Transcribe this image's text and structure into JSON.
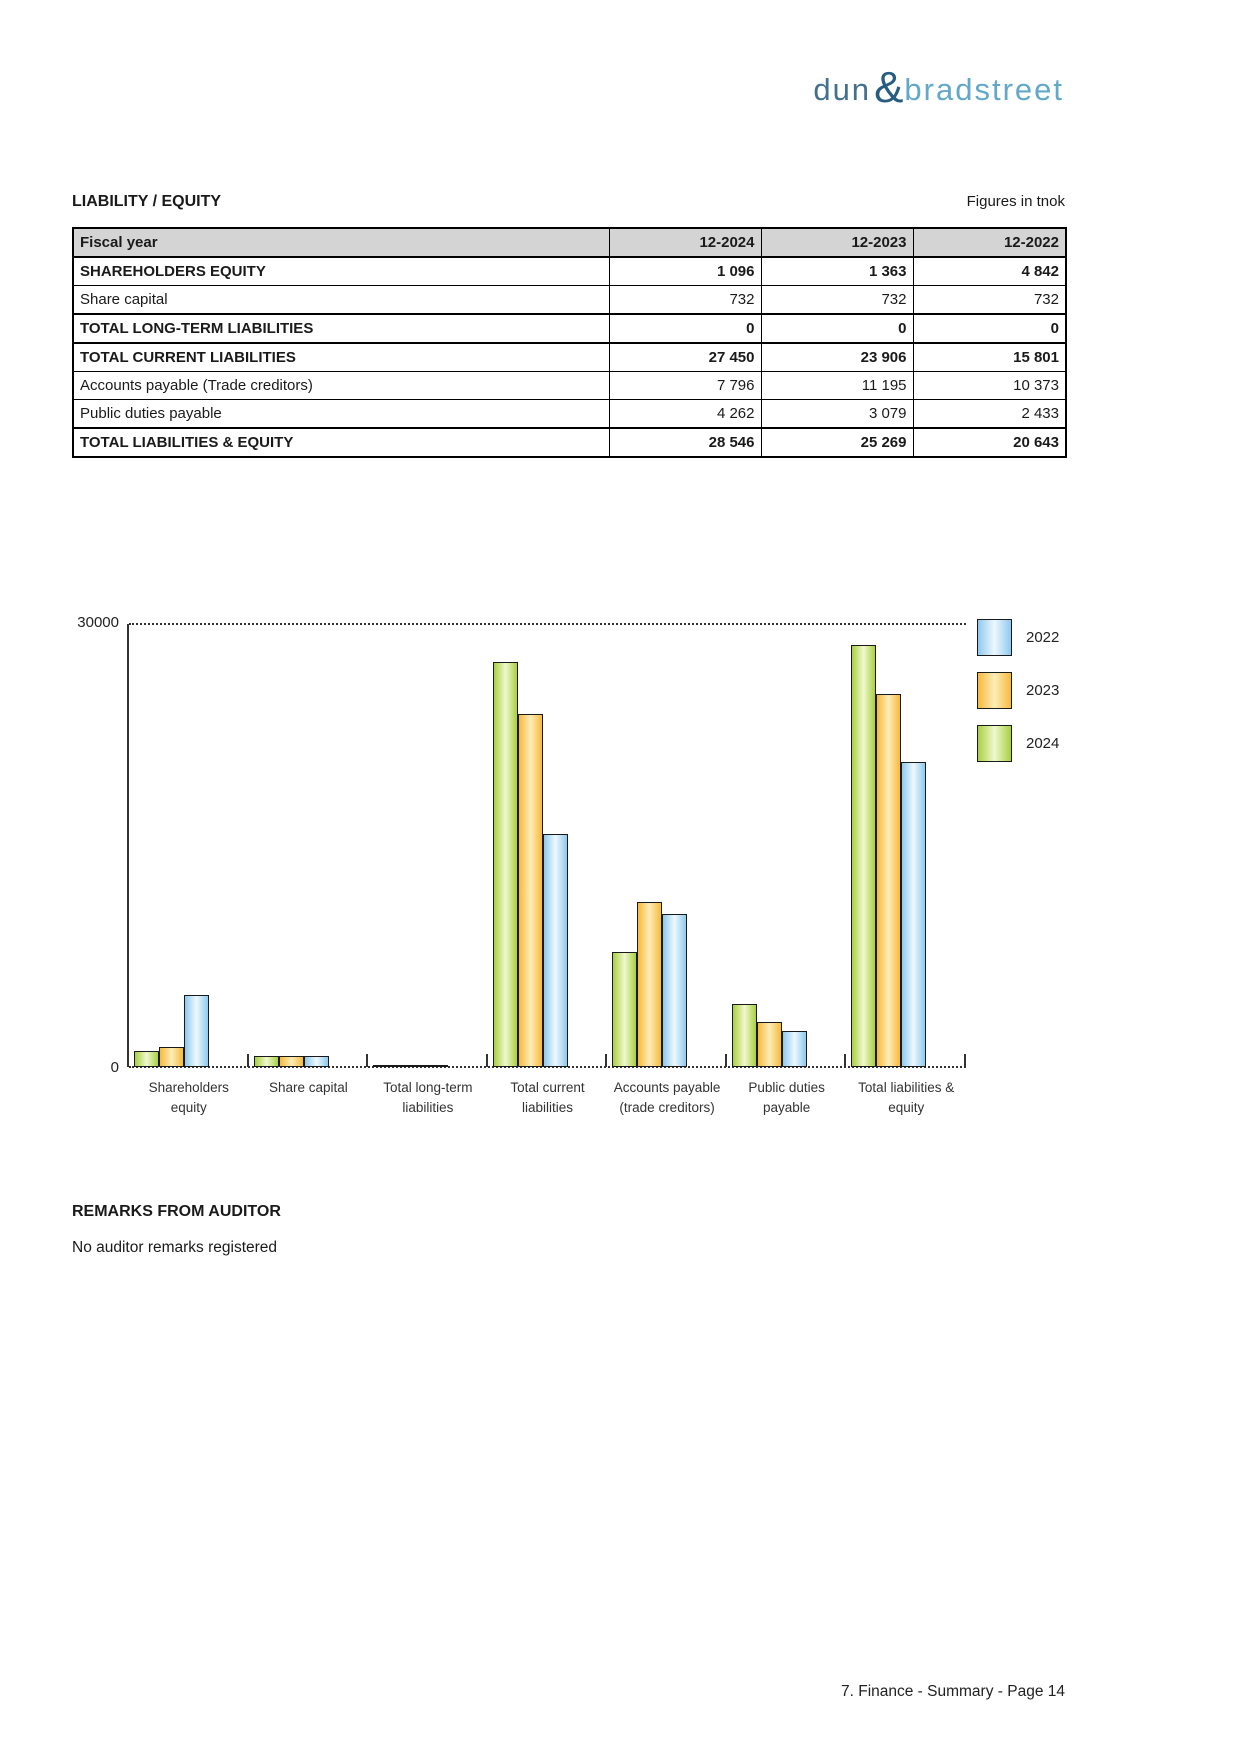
{
  "logo": {
    "dun": "dun",
    "amp": "&",
    "bradstreet": "bradstreet"
  },
  "section": {
    "title": "LIABILITY / EQUITY",
    "units_note": "Figures in tnok"
  },
  "table": {
    "header": [
      "Fiscal year",
      "12-2024",
      "12-2023",
      "12-2022"
    ],
    "rows": [
      {
        "label": "SHAREHOLDERS EQUITY",
        "values": [
          "1 096",
          "1 363",
          "4 842"
        ],
        "bold": true
      },
      {
        "label": "Share capital",
        "values": [
          "732",
          "732",
          "732"
        ],
        "bold": false
      },
      {
        "label": "TOTAL LONG-TERM LIABILITIES",
        "values": [
          "0",
          "0",
          "0"
        ],
        "bold": true
      },
      {
        "label": "TOTAL CURRENT LIABILITIES",
        "values": [
          "27 450",
          "23 906",
          "15 801"
        ],
        "bold": true
      },
      {
        "label": "Accounts payable (Trade creditors)",
        "values": [
          "7 796",
          "11 195",
          "10 373"
        ],
        "bold": false
      },
      {
        "label": "Public duties payable",
        "values": [
          "4 262",
          "3 079",
          "2 433"
        ],
        "bold": false
      },
      {
        "label": "TOTAL LIABILITIES & EQUITY",
        "values": [
          "28 546",
          "25 269",
          "20 643"
        ],
        "bold": true
      }
    ]
  },
  "chart_data": {
    "type": "bar",
    "title": "",
    "xlabel": "",
    "ylabel": "",
    "ylim": [
      0,
      30000
    ],
    "ytick_labels": [
      "30000",
      "0"
    ],
    "grid": "dotted line at 30000 and dotted baseline at 0",
    "legend_position": "right",
    "categories": [
      [
        "Shareholders",
        "equity"
      ],
      [
        "Share capital"
      ],
      [
        "Total long-term",
        "liabilities"
      ],
      [
        "Total current",
        "liabilities"
      ],
      [
        "Accounts payable",
        "(trade creditors)"
      ],
      [
        "Public duties",
        "payable"
      ],
      [
        "Total liabilities &",
        "equity"
      ]
    ],
    "series": [
      {
        "name": "2024",
        "color_edge": "#a8d03f",
        "color_mid": "#f0f8d0",
        "values": [
          1096,
          732,
          0,
          27450,
          7796,
          4262,
          28546
        ]
      },
      {
        "name": "2023",
        "color_edge": "#f7b93d",
        "color_mid": "#fdedb8",
        "values": [
          1363,
          732,
          0,
          23906,
          11195,
          3079,
          25269
        ]
      },
      {
        "name": "2022",
        "color_edge": "#8ec9ee",
        "color_mid": "#eef8fe",
        "values": [
          4842,
          732,
          0,
          15801,
          10373,
          2433,
          20643
        ]
      }
    ],
    "legend_order": [
      "2022",
      "2023",
      "2024"
    ]
  },
  "remarks": {
    "heading": "REMARKS FROM AUDITOR",
    "body": "No auditor remarks registered"
  },
  "page": {
    "footer": "7. Finance - Summary - Page 14"
  }
}
